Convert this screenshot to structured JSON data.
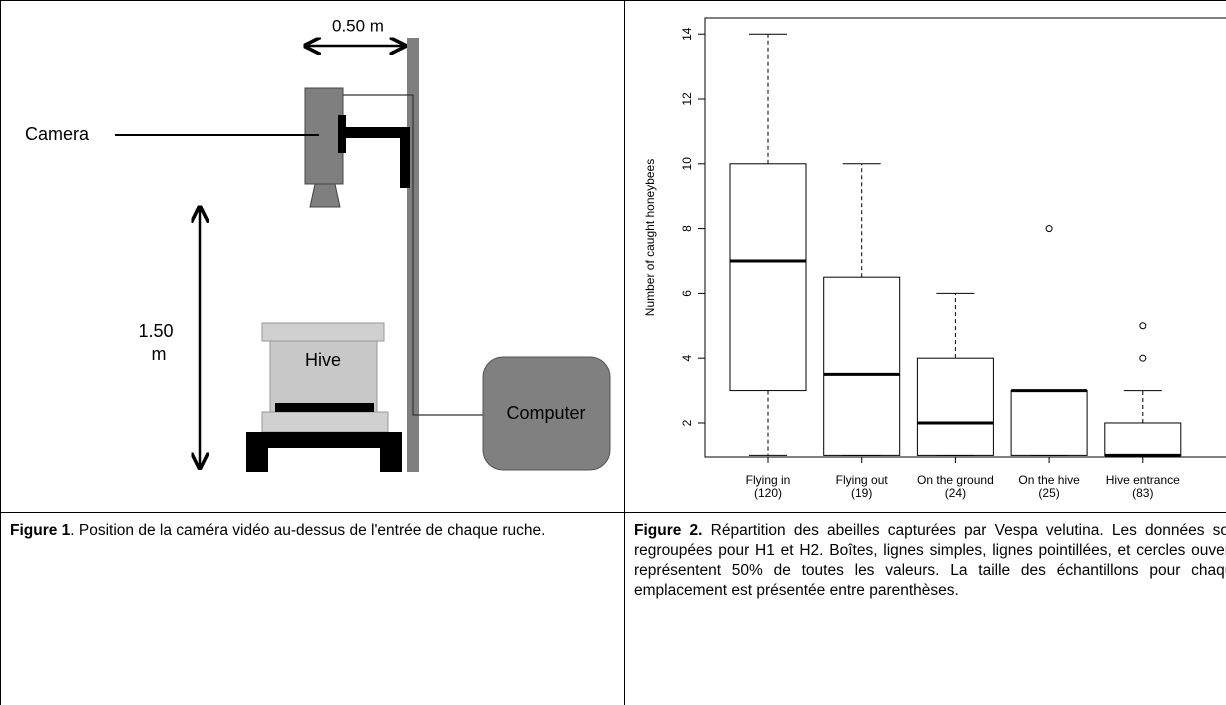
{
  "figure1": {
    "dimension_horizontal": "0.50 m",
    "camera_label": "Camera",
    "dimension_vertical_value": "1.50",
    "dimension_vertical_unit": "m",
    "hive_label": "Hive",
    "computer_label": "Computer"
  },
  "chart_data": {
    "type": "boxplot",
    "y_label": "Number of caught honeybees",
    "categories": [
      "Flying in",
      "Flying out",
      "On the ground",
      "On the hive",
      "Hive entrance"
    ],
    "sample_sizes": [
      "(120)",
      "(19)",
      "(24)",
      "(25)",
      "(83)"
    ],
    "boxes": [
      {
        "min": 1,
        "q1": 3,
        "median": 7,
        "q3": 10,
        "max": 14,
        "outliers": []
      },
      {
        "min": 1,
        "q1": 1,
        "median": 3.5,
        "q3": 6.5,
        "max": 10,
        "outliers": []
      },
      {
        "min": 1,
        "q1": 1,
        "median": 2,
        "q3": 4,
        "max": 6,
        "outliers": []
      },
      {
        "min": 1,
        "q1": 1,
        "median": 3,
        "q3": 3,
        "max": 3,
        "outliers": [
          8
        ]
      },
      {
        "min": 1,
        "q1": 1,
        "median": 1,
        "q3": 2,
        "max": 3,
        "outliers": [
          4,
          5
        ]
      }
    ],
    "ylim": [
      0.95,
      14.5
    ],
    "yticks": [
      2,
      4,
      6,
      8,
      10,
      12,
      14
    ],
    "color": "#000000"
  },
  "captions": {
    "figure1": {
      "label": "Figure 1",
      "text": ". Position de la caméra vidéo au-dessus de l'entrée de chaque ruche."
    },
    "figure2": {
      "label": "Figure 2.",
      "text": " Répartition des abeilles capturées par Vespa velutina. Les données sont regroupées pour H1 et H2. Boîtes, lignes simples, lignes pointillées, et cercles ouverts représentent 50% de toutes les valeurs. La taille des échantillons pour chaque emplacement est présentée  entre parenthèses."
    }
  }
}
